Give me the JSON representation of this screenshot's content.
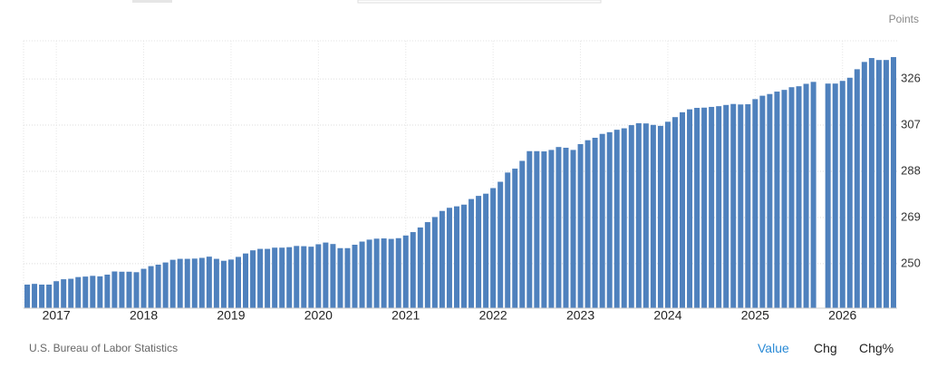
{
  "chart_data": {
    "type": "bar",
    "y_unit": "Points",
    "source": "U.S. Bureau of Labor Statistics",
    "buttons": [
      "Value",
      "Chg",
      "Chg%"
    ],
    "color": "#4f81bd",
    "categories": [
      null,
      null,
      null,
      null,
      "2017",
      null,
      null,
      null,
      null,
      null,
      null,
      null,
      null,
      null,
      null,
      null,
      "2018",
      null,
      null,
      null,
      null,
      null,
      null,
      null,
      null,
      null,
      null,
      null,
      "2019",
      null,
      null,
      null,
      null,
      null,
      null,
      null,
      null,
      null,
      null,
      null,
      "2020",
      null,
      null,
      null,
      null,
      null,
      null,
      null,
      null,
      null,
      null,
      null,
      "2021",
      null,
      null,
      null,
      null,
      null,
      null,
      null,
      null,
      null,
      null,
      null,
      "2022",
      null,
      null,
      null,
      null,
      null,
      null,
      null,
      null,
      null,
      null,
      null,
      "2023",
      null,
      null,
      null,
      null,
      null,
      null,
      null,
      null,
      null,
      null,
      null,
      "2024",
      null,
      null,
      null,
      null,
      null,
      null,
      null,
      null,
      null,
      null,
      null,
      "2025",
      null,
      null,
      null,
      null,
      null,
      null,
      null,
      null,
      null,
      null,
      null,
      "2026",
      null,
      null,
      null,
      null,
      null,
      null,
      null
    ],
    "values": [
      241.4,
      241.7,
      241.4,
      241.4,
      242.8,
      243.6,
      243.8,
      244.5,
      244.7,
      245.0,
      244.8,
      245.5,
      246.8,
      246.7,
      246.7,
      246.5,
      247.9,
      249.0,
      249.6,
      250.5,
      251.6,
      252.0,
      252.0,
      252.1,
      252.4,
      252.9,
      252.0,
      251.2,
      251.7,
      252.8,
      254.2,
      255.5,
      256.1,
      256.1,
      256.6,
      256.6,
      256.8,
      257.3,
      257.2,
      257.0,
      258.0,
      258.7,
      258.1,
      256.4,
      256.4,
      257.8,
      259.1,
      259.9,
      260.3,
      260.4,
      260.2,
      260.5,
      261.6,
      263.0,
      264.9,
      267.1,
      269.2,
      271.7,
      273.0,
      273.6,
      274.3,
      276.6,
      277.9,
      278.8,
      281.1,
      283.7,
      287.5,
      289.1,
      292.3,
      296.3,
      296.3,
      296.2,
      296.8,
      298.0,
      297.7,
      296.8,
      299.2,
      300.8,
      301.8,
      303.4,
      304.1,
      305.1,
      305.7,
      307.0,
      307.8,
      307.7,
      307.1,
      306.7,
      308.4,
      310.3,
      312.3,
      313.5,
      314.1,
      314.2,
      314.5,
      314.8,
      315.3,
      315.7,
      315.5,
      315.6,
      317.7,
      319.1,
      319.8,
      320.8,
      321.5,
      322.6,
      323.0,
      324.0,
      324.8,
      null,
      324.1,
      324.1,
      325.2,
      326.5,
      330.0,
      333.0,
      334.6,
      333.8,
      333.8,
      335.0
    ],
    "ylim": [
      231.7,
      341.7
    ],
    "yticks": [
      250,
      269,
      288,
      307,
      326
    ],
    "grid": true
  }
}
